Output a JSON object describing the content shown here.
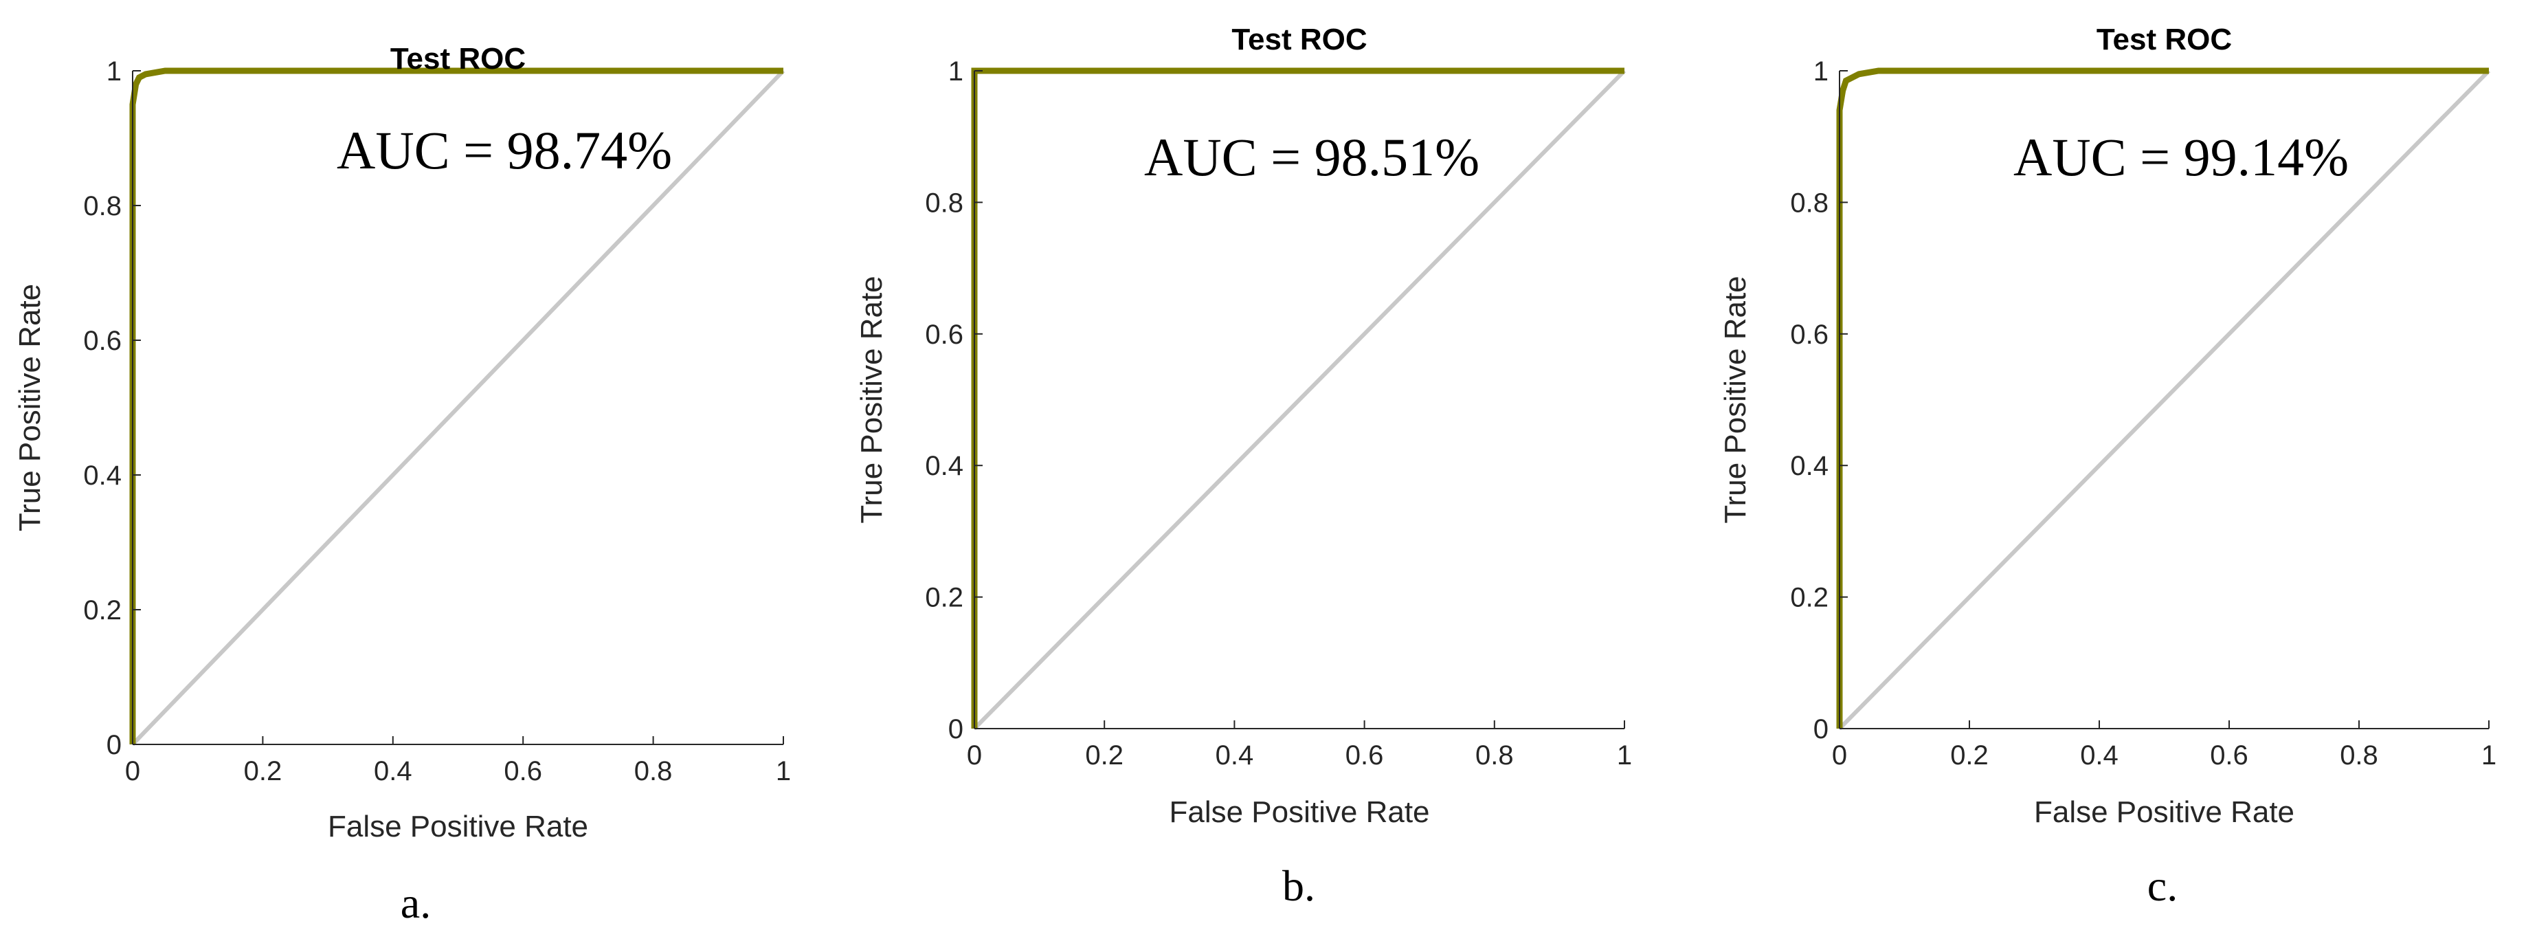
{
  "chart_data": [
    {
      "type": "line",
      "title": "Test ROC",
      "xlabel": "False Positive Rate",
      "ylabel": "True Positive Rate",
      "xlim": [
        0,
        1
      ],
      "ylim": [
        0,
        1
      ],
      "xticks": [
        "0",
        "0.2",
        "0.4",
        "0.6",
        "0.8",
        "1"
      ],
      "yticks": [
        "0",
        "0.2",
        "0.4",
        "0.6",
        "0.8",
        "1"
      ],
      "grid": false,
      "annotation": "AUC = 98.74%",
      "panel_label": "a.",
      "series": [
        {
          "name": "",
          "color": "#7f7f00",
          "x": [
            0,
            0,
            0.005,
            0.01,
            0.02,
            0.05,
            1
          ],
          "y": [
            0,
            0.95,
            0.98,
            0.99,
            0.995,
            1,
            1
          ]
        },
        {
          "name": "",
          "color": "#c8c8c8",
          "x": [
            0,
            1
          ],
          "y": [
            0,
            1
          ]
        }
      ]
    },
    {
      "type": "line",
      "title": "Test ROC",
      "xlabel": "False Positive Rate",
      "ylabel": "True Positive Rate",
      "xlim": [
        0,
        1
      ],
      "ylim": [
        0,
        1
      ],
      "xticks": [
        "0",
        "0.2",
        "0.4",
        "0.6",
        "0.8",
        "1"
      ],
      "yticks": [
        "0",
        "0.2",
        "0.4",
        "0.6",
        "0.8",
        "1"
      ],
      "grid": false,
      "annotation": "AUC = 98.51%",
      "panel_label": "b.",
      "series": [
        {
          "name": "",
          "color": "#7f7f00",
          "x": [
            0,
            0,
            1
          ],
          "y": [
            0,
            1,
            1
          ]
        },
        {
          "name": "",
          "color": "#c8c8c8",
          "x": [
            0,
            1
          ],
          "y": [
            0,
            1
          ]
        }
      ]
    },
    {
      "type": "line",
      "title": "Test ROC",
      "xlabel": "False Positive Rate",
      "ylabel": "True Positive Rate",
      "xlim": [
        0,
        1
      ],
      "ylim": [
        0,
        1
      ],
      "xticks": [
        "0",
        "0.2",
        "0.4",
        "0.6",
        "0.8",
        "1"
      ],
      "yticks": [
        "0",
        "0.2",
        "0.4",
        "0.6",
        "0.8",
        "1"
      ],
      "grid": false,
      "annotation": "AUC = 99.14%",
      "panel_label": "c.",
      "series": [
        {
          "name": "",
          "color": "#7f7f00",
          "x": [
            0,
            0,
            0.005,
            0.01,
            0.03,
            0.06,
            1
          ],
          "y": [
            0,
            0.94,
            0.97,
            0.985,
            0.995,
            1,
            1
          ]
        },
        {
          "name": "",
          "color": "#c8c8c8",
          "x": [
            0,
            1
          ],
          "y": [
            0,
            1
          ]
        }
      ]
    }
  ]
}
